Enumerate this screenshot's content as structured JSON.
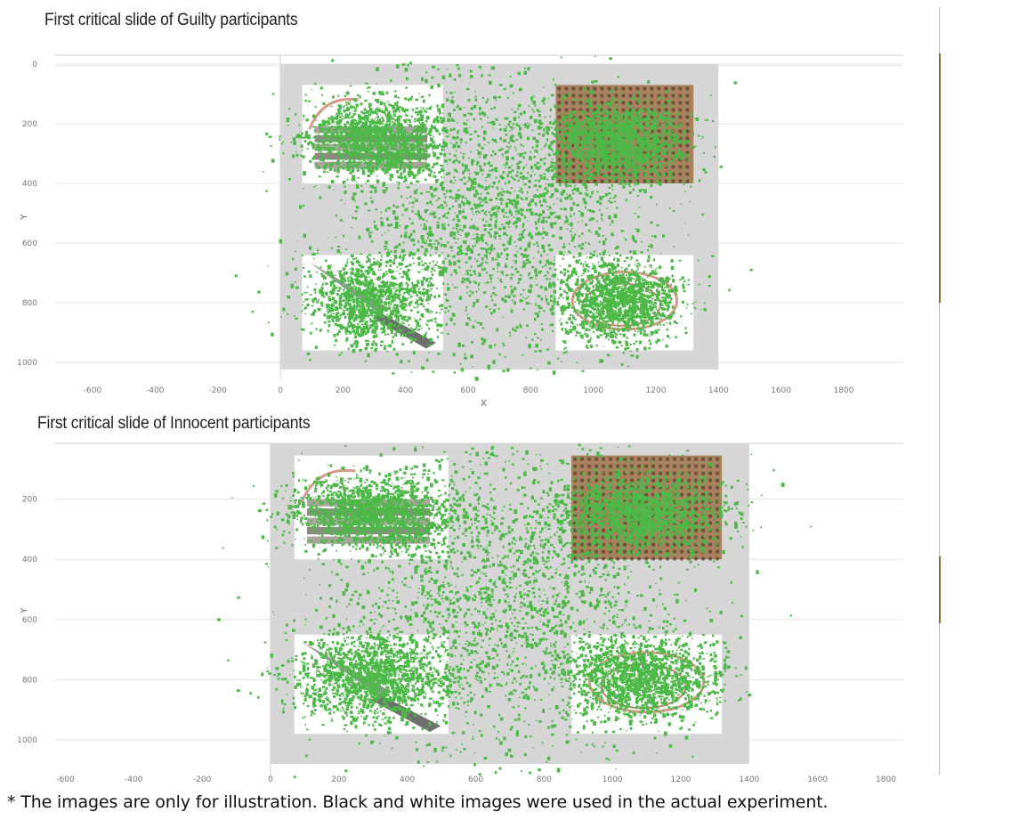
{
  "footnote": "* The images are only for illustration. Black and white images were used in the actual experiment.",
  "colors": {
    "gaze": "#4db848",
    "stimulus_screen": "#d6d6d6",
    "stimulus_image_bg": "#ffffff",
    "basket": "#a8825e",
    "basket_dark": "#4a3020",
    "knife": "#6e6e6e",
    "rope": "#d89a8a",
    "gridline": "#e6e6e6",
    "axis": "#cfcfcf"
  },
  "icons": [
    "money-stack-icon",
    "wicker-basket-icon",
    "knife-icon",
    "rope-icon"
  ],
  "chart_data": [
    {
      "type": "scatter",
      "title": "First critical slide of Guilty participants",
      "xlabel": "X",
      "ylabel": "Y",
      "xlim": [
        -650,
        2100
      ],
      "ylim": [
        0,
        1080
      ],
      "y_axis": "inverted",
      "x_ticks": [
        "-600",
        "-400",
        "-200",
        "0",
        "200",
        "400",
        "600",
        "800",
        "1000",
        "1200",
        "1400",
        "1600",
        "1800"
      ],
      "y_ticks": [
        "0",
        "200",
        "400",
        "600",
        "800",
        "1000"
      ],
      "grid": "horizontal",
      "stimulus_screen": {
        "x": [
          0,
          1400
        ],
        "y": [
          0,
          1024
        ]
      },
      "stimulus_images": [
        {
          "name": "money",
          "x": [
            70,
            520
          ],
          "y": [
            70,
            400
          ]
        },
        {
          "name": "basket",
          "x": [
            880,
            1320
          ],
          "y": [
            70,
            400
          ]
        },
        {
          "name": "knife",
          "x": [
            70,
            520
          ],
          "y": [
            640,
            960
          ]
        },
        {
          "name": "rope",
          "x": [
            880,
            1320
          ],
          "y": [
            640,
            960
          ]
        }
      ],
      "gaze_clusters": [
        {
          "aoi": "money",
          "center": [
            300,
            250
          ],
          "spread": [
            110,
            65
          ],
          "points": 1600
        },
        {
          "aoi": "basket",
          "center": [
            1080,
            250
          ],
          "spread": [
            105,
            65
          ],
          "points": 1500
        },
        {
          "aoi": "knife",
          "center": [
            280,
            790
          ],
          "spread": [
            95,
            70
          ],
          "points": 1200
        },
        {
          "aoi": "rope",
          "center": [
            1080,
            790
          ],
          "spread": [
            95,
            65
          ],
          "points": 1400
        },
        {
          "aoi": "center",
          "center": [
            690,
            500
          ],
          "spread": [
            240,
            240
          ],
          "points": 2200
        }
      ]
    },
    {
      "type": "scatter",
      "title": "First critical slide of Innocent participants",
      "xlabel": "",
      "ylabel": "Y",
      "xlim": [
        -650,
        2100
      ],
      "ylim": [
        0,
        1080
      ],
      "y_axis": "inverted",
      "x_ticks": [
        "-600",
        "-400",
        "-200",
        "0",
        "200",
        "400",
        "600",
        "800",
        "1000",
        "1200",
        "1400",
        "1600",
        "1800"
      ],
      "y_ticks": [
        "200",
        "400",
        "600",
        "800",
        "1000"
      ],
      "grid": "horizontal",
      "stimulus_screen": {
        "x": [
          0,
          1400
        ],
        "y": [
          0,
          1080
        ]
      },
      "stimulus_images": [
        {
          "name": "money",
          "x": [
            70,
            520
          ],
          "y": [
            55,
            400
          ]
        },
        {
          "name": "basket",
          "x": [
            880,
            1320
          ],
          "y": [
            55,
            400
          ]
        },
        {
          "name": "knife",
          "x": [
            70,
            520
          ],
          "y": [
            650,
            980
          ]
        },
        {
          "name": "rope",
          "x": [
            880,
            1320
          ],
          "y": [
            650,
            980
          ]
        }
      ],
      "gaze_clusters": [
        {
          "aoi": "money",
          "center": [
            300,
            240
          ],
          "spread": [
            120,
            60
          ],
          "points": 1600
        },
        {
          "aoi": "basket",
          "center": [
            1080,
            240
          ],
          "spread": [
            115,
            60
          ],
          "points": 1500
        },
        {
          "aoi": "knife",
          "center": [
            290,
            790
          ],
          "spread": [
            110,
            70
          ],
          "points": 1500
        },
        {
          "aoi": "rope",
          "center": [
            1080,
            790
          ],
          "spread": [
            110,
            70
          ],
          "points": 1500
        },
        {
          "aoi": "center",
          "center": [
            690,
            520
          ],
          "spread": [
            260,
            260
          ],
          "points": 2200
        }
      ]
    }
  ]
}
